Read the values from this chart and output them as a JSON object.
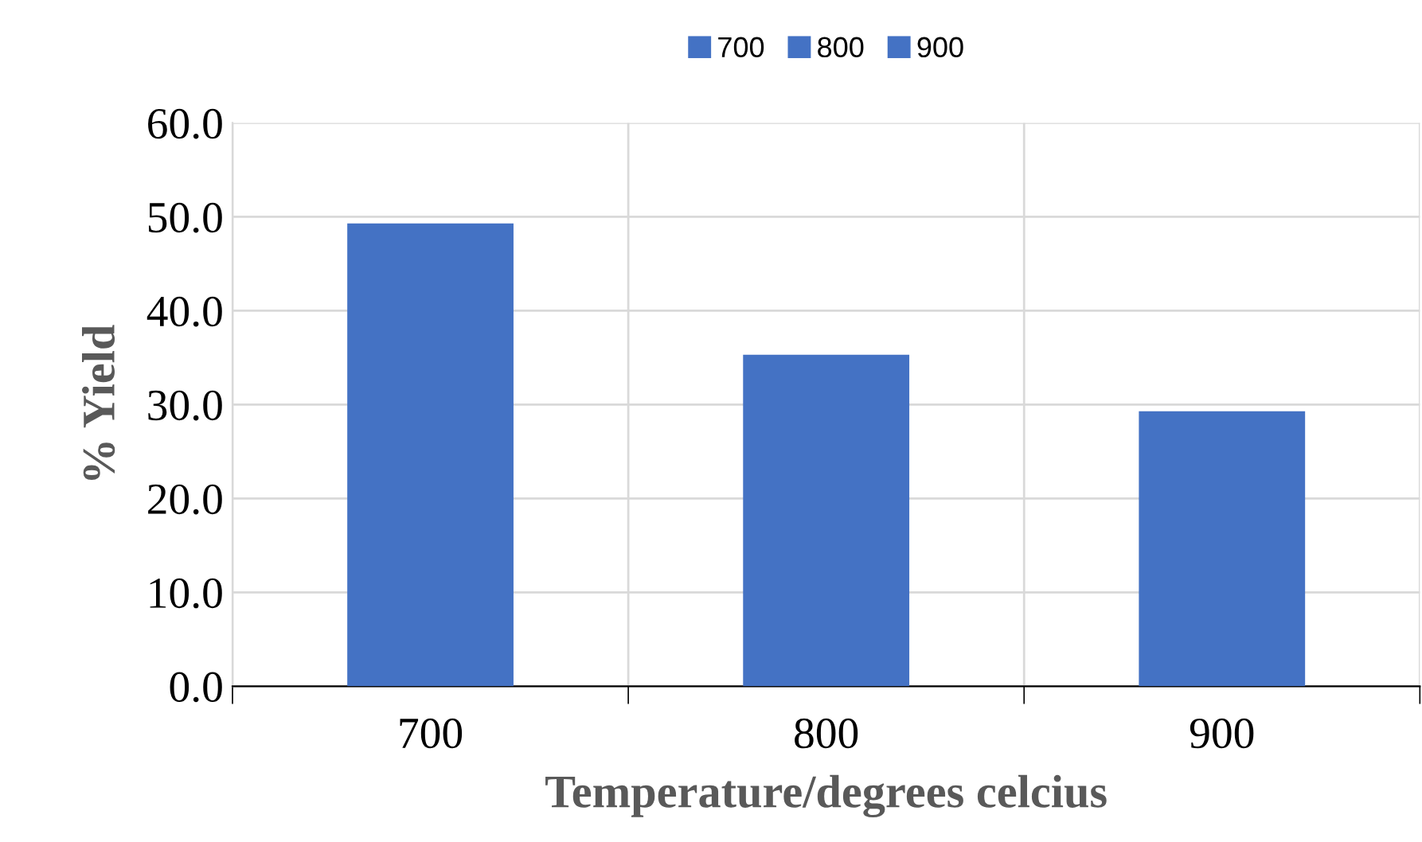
{
  "chart_data": {
    "type": "bar",
    "xlabel": "Temperature/degrees celcius",
    "ylabel": "% Yield",
    "categories": [
      "700",
      "800",
      "900"
    ],
    "stacked": true,
    "series": [
      {
        "name": "700",
        "color": "#4472c4",
        "values": [
          49.3,
          null,
          null
        ]
      },
      {
        "name": "800",
        "color": "#4472c4",
        "values": [
          null,
          35.3,
          null
        ]
      },
      {
        "name": "900",
        "color": "#4472c4",
        "values": [
          null,
          null,
          29.3
        ]
      }
    ],
    "ylim": [
      0,
      60
    ],
    "yticks": [
      {
        "value": 0,
        "label": "0.0"
      },
      {
        "value": 10,
        "label": "10.0"
      },
      {
        "value": 20,
        "label": "20.0"
      },
      {
        "value": 30,
        "label": "30.0"
      },
      {
        "value": 40,
        "label": "40.0"
      },
      {
        "value": 50,
        "label": "50.0"
      },
      {
        "value": 60,
        "label": "60.0"
      }
    ],
    "grid": true,
    "legend": "top"
  }
}
